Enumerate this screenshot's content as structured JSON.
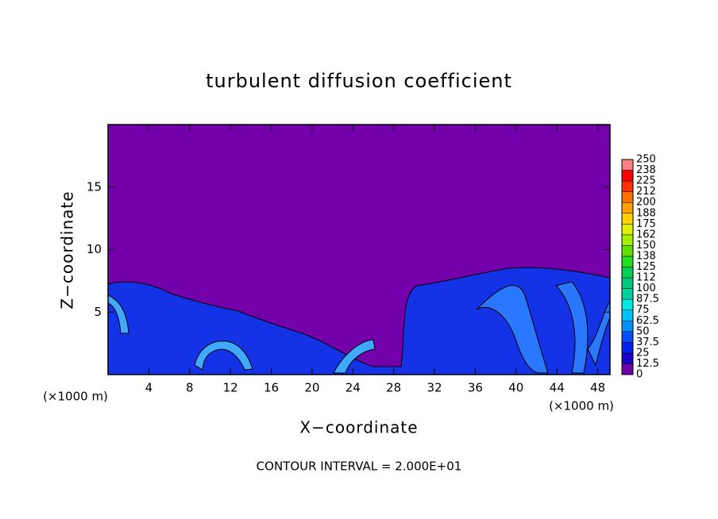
{
  "chart_data": {
    "type": "contour",
    "title": "turbulent diffusion coefficient",
    "x_label": "X−coordinate",
    "y_label": "Z−coordinate",
    "x_unit_left": "(×1000 m)",
    "x_unit_right": "(×1000 m)",
    "footnote": "CONTOUR INTERVAL = 2.000E+01",
    "xlim": [
      0,
      49.2
    ],
    "xticks": [
      4,
      8,
      12,
      16,
      20,
      24,
      28,
      32,
      36,
      40,
      44,
      48
    ],
    "ylim": [
      0,
      20
    ],
    "yticks": [
      5,
      10,
      15
    ],
    "colorbar": {
      "ticks": [
        0,
        12.5,
        25,
        37.5,
        50,
        62.5,
        75,
        87.5,
        100,
        112,
        125,
        138,
        150,
        162,
        175,
        188,
        200,
        212,
        225,
        238,
        250
      ],
      "colors": [
        "#7000a8",
        "#1a00c8",
        "#0022ee",
        "#0050ff",
        "#0090ff",
        "#00c0ff",
        "#00e8e0",
        "#00d0a0",
        "#00c878",
        "#00d050",
        "#20e020",
        "#60e000",
        "#a0f000",
        "#e0f000",
        "#ffd000",
        "#ffa000",
        "#ff7000",
        "#ff3000",
        "#ff0000",
        "#ff8080"
      ]
    }
  }
}
